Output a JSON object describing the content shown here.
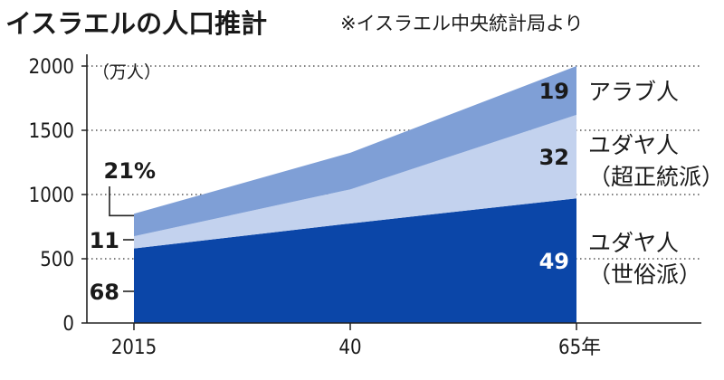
{
  "chart_data": {
    "type": "area",
    "stacked": true,
    "title": "イスラエルの人口推計",
    "source": "※イスラエル中央統計局より",
    "ylabel": "（万人）",
    "ylim": [
      0,
      2000
    ],
    "yticks": [
      "0",
      "500",
      "1000",
      "1500",
      "2000"
    ],
    "x": [
      "2015",
      "40",
      "65年"
    ],
    "grid": true,
    "series": [
      {
        "name_lines": [
          "ユダヤ人",
          "（世俗派）"
        ],
        "color": "#0b46a8",
        "values": [
          580,
          775,
          970
        ],
        "share_2015": "68",
        "share_2065": "49"
      },
      {
        "name_lines": [
          "ユダヤ人",
          "（超正統派）"
        ],
        "color": "#c3d2ee",
        "values": [
          95,
          265,
          650
        ],
        "share_2015": "11",
        "share_2065": "32"
      },
      {
        "name_lines": [
          "アラブ人"
        ],
        "color": "#7f9fd6",
        "values": [
          175,
          285,
          380
        ],
        "share_2015": "21%",
        "share_2065": "19"
      }
    ]
  }
}
